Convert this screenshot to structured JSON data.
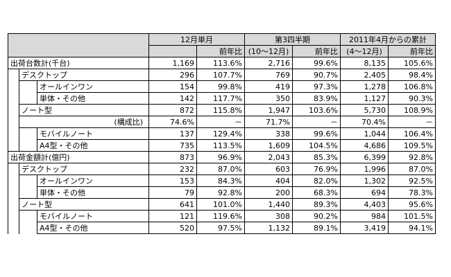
{
  "header": {
    "group1": "12月単月",
    "group2": "第3四半期",
    "group2_sub": "(10～12月)",
    "group3": "2011年4月からの累計",
    "group3_sub": "(4～12月)",
    "yoy": "前年比"
  },
  "rows": [
    {
      "label": "出荷台数計(千台)",
      "level": 0,
      "v": [
        "1,169",
        "113.6%",
        "2,716",
        "99.6%",
        "8,135",
        "105.6%"
      ]
    },
    {
      "label": "デスクトップ",
      "level": 1,
      "v": [
        "296",
        "107.7%",
        "769",
        "90.7%",
        "2,405",
        "98.4%"
      ]
    },
    {
      "label": "オールインワン",
      "level": 2,
      "v": [
        "154",
        "99.8%",
        "419",
        "97.3%",
        "1,278",
        "106.8%"
      ]
    },
    {
      "label": "単体・その他",
      "level": 2,
      "v": [
        "142",
        "117.7%",
        "350",
        "83.9%",
        "1,127",
        "90.3%"
      ]
    },
    {
      "label": "ノート型",
      "level": 1,
      "v": [
        "872",
        "115.8%",
        "1,947",
        "103.6%",
        "5,730",
        "108.9%"
      ]
    },
    {
      "label": "(構成比)",
      "level": 1,
      "share": true,
      "v": [
        "74.6%",
        "－",
        "71.7%",
        "－",
        "70.4%",
        "－"
      ]
    },
    {
      "label": "モバイルノート",
      "level": 2,
      "v": [
        "137",
        "129.4%",
        "338",
        "99.6%",
        "1,044",
        "106.4%"
      ]
    },
    {
      "label": "A4型・その他",
      "level": 2,
      "v": [
        "735",
        "113.5%",
        "1,609",
        "104.5%",
        "4,686",
        "109.5%"
      ]
    },
    {
      "label": "出荷金額計(億円)",
      "level": 0,
      "v": [
        "873",
        "96.9%",
        "2,043",
        "85.3%",
        "6,399",
        "92.8%"
      ]
    },
    {
      "label": "デスクトップ",
      "level": 1,
      "v": [
        "232",
        "87.0%",
        "603",
        "76.9%",
        "1,996",
        "87.0%"
      ]
    },
    {
      "label": "オールインワン",
      "level": 2,
      "v": [
        "153",
        "84.3%",
        "404",
        "82.0%",
        "1,302",
        "92.5%"
      ]
    },
    {
      "label": "単体・その他",
      "level": 2,
      "v": [
        "79",
        "92.8%",
        "200",
        "68.3%",
        "694",
        "78.3%"
      ]
    },
    {
      "label": "ノート型",
      "level": 1,
      "v": [
        "641",
        "101.0%",
        "1,440",
        "89.3%",
        "4,403",
        "95.6%"
      ]
    },
    {
      "label": "モバイルノート",
      "level": 2,
      "v": [
        "121",
        "119.6%",
        "308",
        "90.2%",
        "984",
        "101.5%"
      ]
    },
    {
      "label": "A4型・その他",
      "level": 2,
      "v": [
        "520",
        "97.5%",
        "1,132",
        "89.1%",
        "3,419",
        "94.1%"
      ]
    }
  ]
}
